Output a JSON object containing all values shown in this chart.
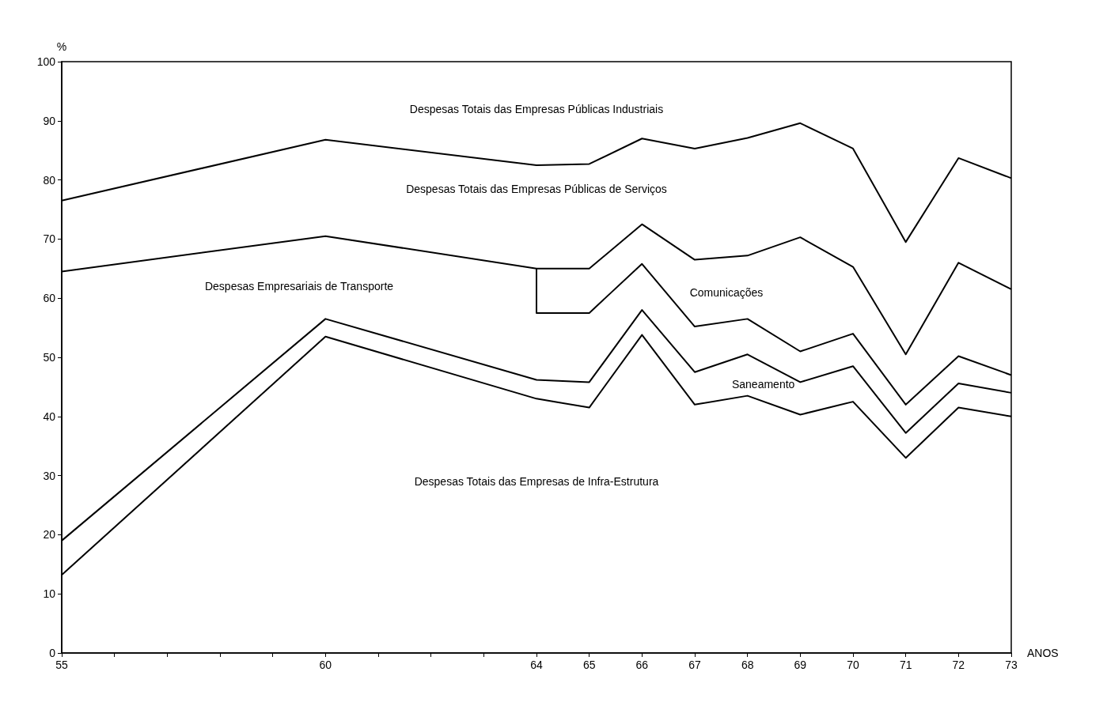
{
  "chart_data": {
    "type": "line",
    "xlabel": "ANOS",
    "ylabel": "%",
    "xlim": [
      55,
      73
    ],
    "ylim": [
      0,
      100
    ],
    "xticks": [
      55,
      {
        "value": 56,
        "label": null
      },
      {
        "value": 57,
        "label": null
      },
      {
        "value": 58,
        "label": null
      },
      {
        "value": 59,
        "label": null
      },
      60,
      {
        "value": 61,
        "label": null
      },
      {
        "value": 62,
        "label": null
      },
      {
        "value": 63,
        "label": null
      },
      64,
      65,
      66,
      67,
      68,
      69,
      70,
      71,
      72,
      73
    ],
    "yticks": [
      0,
      10,
      20,
      30,
      40,
      50,
      60,
      70,
      80,
      90,
      100
    ],
    "marker": "none",
    "line_style": "solid",
    "series": [
      {
        "color": "#000000",
        "x": [
          55,
          60,
          64,
          65,
          66,
          67,
          68,
          69,
          70,
          71,
          72,
          73
        ],
        "values": [
          76.5,
          86.8,
          82.5,
          82.7,
          87,
          85.3,
          87.1,
          89.6,
          85.3,
          69.5,
          83.7,
          80.3
        ]
      },
      {
        "color": "#000000",
        "x": [
          55,
          60,
          64,
          65,
          66,
          67,
          68,
          69,
          70,
          71,
          72,
          73
        ],
        "values": [
          64.5,
          70.5,
          65,
          65,
          72.5,
          66.5,
          67.2,
          70.3,
          65.3,
          50.5,
          66,
          61.5
        ]
      },
      {
        "color": "#000000",
        "x": [
          64,
          64,
          65,
          66,
          67,
          68,
          69,
          70,
          71,
          72,
          73
        ],
        "values": [
          65,
          57.5,
          57.5,
          65.8,
          55.2,
          56.5,
          51,
          54,
          42,
          50.2,
          47
        ]
      },
      {
        "color": "#000000",
        "x": [
          55,
          60,
          64,
          65,
          66,
          67,
          68,
          69,
          70,
          71,
          72,
          73
        ],
        "values": [
          19,
          56.5,
          46.2,
          45.8,
          58,
          47.5,
          50.5,
          45.8,
          48.5,
          37.2,
          45.6,
          44
        ]
      },
      {
        "color": "#000000",
        "x": [
          55,
          60,
          64,
          65,
          66,
          67,
          68,
          69,
          70,
          71,
          72,
          73
        ],
        "values": [
          13.2,
          53.5,
          43,
          41.5,
          53.8,
          42,
          43.5,
          40.3,
          42.5,
          33,
          41.5,
          40
        ]
      }
    ],
    "annotations": [
      "Despesas Totais das Empresas Públicas Industriais",
      "Despesas Totais das Empresas Públicas de Serviços",
      "Despesas Empresariais de Transporte",
      "Comunicações",
      "Saneamento",
      "Despesas Totais das Empresas de Infra-Estrutura"
    ]
  }
}
